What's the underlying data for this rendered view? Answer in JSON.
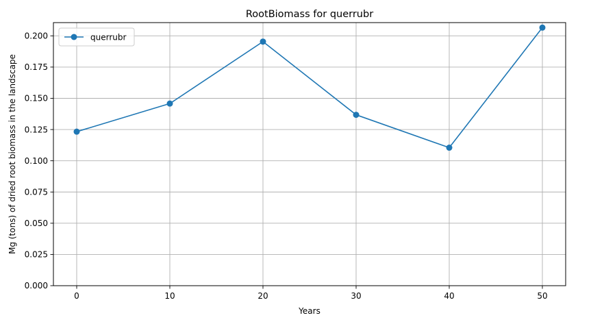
{
  "chart_data": {
    "type": "line",
    "title": "RootBiomass for querrubr",
    "xlabel": "Years",
    "ylabel": "Mg (tons) of dried root biomass in the landscape",
    "x": [
      0,
      10,
      20,
      30,
      40,
      50
    ],
    "series": [
      {
        "name": "querrubr",
        "values": [
          0.1233,
          0.1458,
          0.1954,
          0.1368,
          0.1105,
          0.2066
        ],
        "color": "#1f77b4",
        "marker": "circle"
      }
    ],
    "xlim": [
      -2.5,
      52.5
    ],
    "ylim": [
      0.0,
      0.2106
    ],
    "x_ticks": [
      0,
      10,
      20,
      30,
      40,
      50
    ],
    "x_tick_labels": [
      "0",
      "10",
      "20",
      "30",
      "40",
      "50"
    ],
    "y_ticks": [
      0.0,
      0.025,
      0.05,
      0.075,
      0.1,
      0.125,
      0.15,
      0.175,
      0.2
    ],
    "y_tick_labels": [
      "0.000",
      "0.025",
      "0.050",
      "0.075",
      "0.100",
      "0.125",
      "0.150",
      "0.175",
      "0.200"
    ],
    "grid": true,
    "legend_position": "top-left"
  }
}
